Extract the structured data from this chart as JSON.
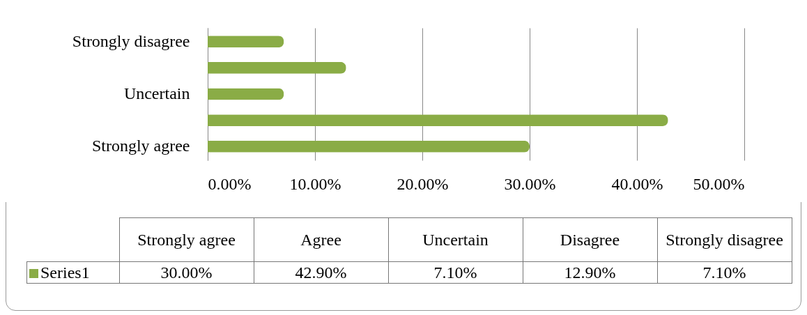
{
  "chart_data": {
    "type": "bar",
    "orientation": "horizontal",
    "categories": [
      "Strongly disagree",
      null,
      "Uncertain",
      null,
      "Strongly agree"
    ],
    "annotations": [
      "Strongly agree",
      "Agree",
      "Uncertain",
      "Disagree",
      "Strongly disagree"
    ],
    "series": [
      {
        "name": "Series1",
        "color": "#8aac46",
        "values": [
          7.1,
          12.9,
          7.1,
          42.9,
          30.0
        ]
      }
    ],
    "value_labels": [
      "7.10%",
      "12.90%",
      "7.10%",
      "42.90%",
      "30.00%"
    ],
    "xlim": [
      0,
      50
    ],
    "xticks": [
      {
        "value": 0,
        "label": "0.00%"
      },
      {
        "value": 10,
        "label": "10.00%"
      },
      {
        "value": 20,
        "label": "20.00%"
      },
      {
        "value": 30,
        "label": "30.00%"
      },
      {
        "value": 40,
        "label": "40.00%"
      },
      {
        "value": 50,
        "label": "50.00%"
      }
    ],
    "grid": "x"
  }
}
